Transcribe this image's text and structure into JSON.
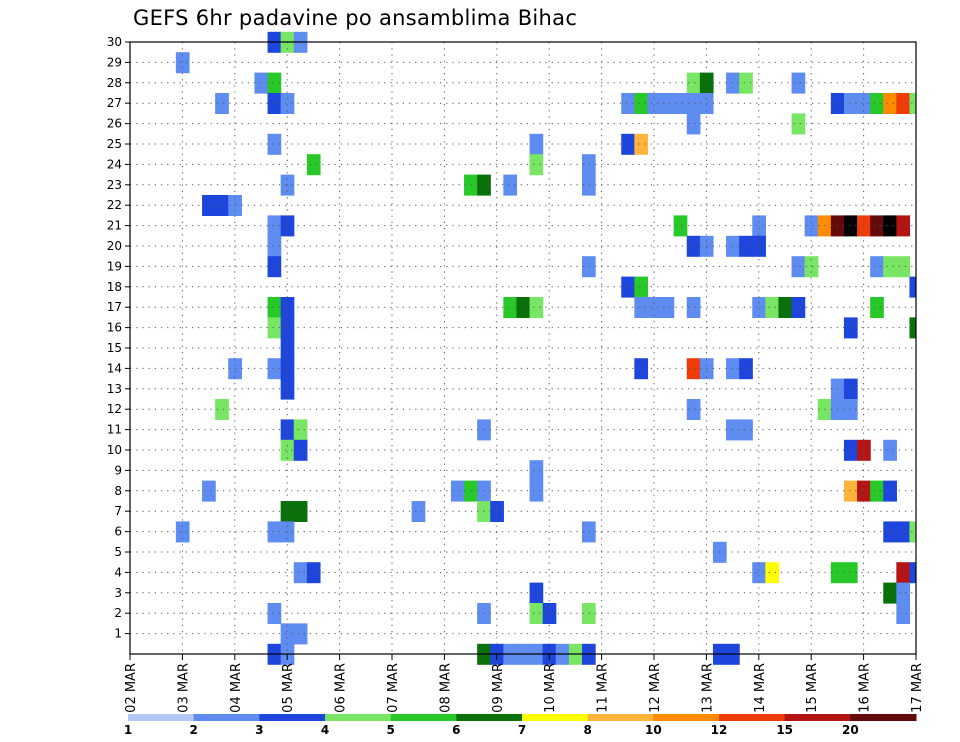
{
  "chart_data": {
    "type": "heatmap",
    "title": "GEFS 6hr padavine po ansamblima Bihac",
    "x_tick_labels": [
      "02 MAR",
      "03 MAR",
      "04 MAR",
      "05 MAR",
      "06 MAR",
      "07 MAR",
      "08 MAR",
      "09 MAR",
      "10 MAR",
      "11 MAR",
      "12 MAR",
      "13 MAR",
      "14 MAR",
      "15 MAR",
      "16 MAR",
      "17 MAR"
    ],
    "y_tick_labels": [
      "1",
      "2",
      "3",
      "4",
      "5",
      "6",
      "7",
      "8",
      "9",
      "10",
      "11",
      "12",
      "13",
      "14",
      "15",
      "16",
      "17",
      "18",
      "19",
      "20",
      "21",
      "22",
      "23",
      "24",
      "25",
      "26",
      "27",
      "28",
      "29",
      "30"
    ],
    "x_range": [
      0,
      60
    ],
    "y_range": [
      0,
      30
    ],
    "x_unit": "6-hour steps from 02 MAR",
    "grid": true,
    "legend_placement": "bottom",
    "legend_levels": [
      "1",
      "2",
      "3",
      "4",
      "5",
      "6",
      "7",
      "8",
      "10",
      "12",
      "15",
      "20"
    ],
    "legend_colors": [
      "#b4c8f5",
      "#5f8cf0",
      "#1e46dc",
      "#78e664",
      "#28c828",
      "#0a700a",
      "#ffff00",
      "#ffb43c",
      "#ff8c00",
      "#f03c0a",
      "#b41414",
      "#640a0a"
    ],
    "cells": [
      [
        11,
        30,
        2
      ],
      [
        12,
        30,
        3
      ],
      [
        13,
        30,
        1
      ],
      [
        4,
        29,
        1
      ],
      [
        10,
        28,
        1
      ],
      [
        11,
        28,
        4
      ],
      [
        43,
        28,
        3
      ],
      [
        44,
        28,
        5
      ],
      [
        46,
        28,
        1
      ],
      [
        47,
        28,
        3
      ],
      [
        51,
        28,
        1
      ],
      [
        7,
        27,
        1
      ],
      [
        11,
        27,
        2
      ],
      [
        12,
        27,
        1
      ],
      [
        38,
        27,
        1
      ],
      [
        39,
        27,
        4
      ],
      [
        40,
        27,
        1
      ],
      [
        41,
        27,
        1
      ],
      [
        42,
        27,
        1
      ],
      [
        43,
        27,
        1
      ],
      [
        44,
        27,
        1
      ],
      [
        54,
        27,
        2
      ],
      [
        55,
        27,
        1
      ],
      [
        56,
        27,
        1
      ],
      [
        57,
        27,
        4
      ],
      [
        58,
        27,
        8
      ],
      [
        59,
        27,
        9
      ],
      [
        60,
        27,
        3
      ],
      [
        43,
        26,
        1
      ],
      [
        51,
        26,
        3
      ],
      [
        11,
        25,
        1
      ],
      [
        31,
        25,
        1
      ],
      [
        38,
        25,
        2
      ],
      [
        39,
        25,
        7
      ],
      [
        14,
        24,
        4
      ],
      [
        31,
        24,
        3
      ],
      [
        35,
        24,
        1
      ],
      [
        12,
        23,
        1
      ],
      [
        26,
        23,
        4
      ],
      [
        27,
        23,
        5
      ],
      [
        29,
        23,
        1
      ],
      [
        35,
        23,
        1
      ],
      [
        6,
        22,
        2
      ],
      [
        7,
        22,
        2
      ],
      [
        8,
        22,
        1
      ],
      [
        11,
        21,
        1
      ],
      [
        12,
        21,
        2
      ],
      [
        42,
        21,
        4
      ],
      [
        48,
        21,
        1
      ],
      [
        52,
        21,
        1
      ],
      [
        53,
        21,
        8
      ],
      [
        54,
        21,
        11
      ],
      [
        55,
        21,
        12
      ],
      [
        56,
        21,
        9
      ],
      [
        57,
        21,
        11
      ],
      [
        58,
        21,
        12
      ],
      [
        59,
        21,
        10
      ],
      [
        11,
        20,
        1
      ],
      [
        43,
        20,
        2
      ],
      [
        44,
        20,
        1
      ],
      [
        46,
        20,
        1
      ],
      [
        47,
        20,
        2
      ],
      [
        48,
        20,
        2
      ],
      [
        11,
        19,
        2
      ],
      [
        35,
        19,
        1
      ],
      [
        51,
        19,
        1
      ],
      [
        52,
        19,
        3
      ],
      [
        57,
        19,
        1
      ],
      [
        58,
        19,
        3
      ],
      [
        59,
        19,
        3
      ],
      [
        38,
        18,
        2
      ],
      [
        39,
        18,
        4
      ],
      [
        60,
        18,
        2
      ],
      [
        11,
        17,
        4
      ],
      [
        12,
        17,
        2
      ],
      [
        29,
        17,
        4
      ],
      [
        30,
        17,
        5
      ],
      [
        31,
        17,
        3
      ],
      [
        39,
        17,
        1
      ],
      [
        40,
        17,
        1
      ],
      [
        41,
        17,
        1
      ],
      [
        43,
        17,
        1
      ],
      [
        48,
        17,
        1
      ],
      [
        49,
        17,
        3
      ],
      [
        50,
        17,
        5
      ],
      [
        51,
        17,
        2
      ],
      [
        57,
        17,
        4
      ],
      [
        11,
        16,
        3
      ],
      [
        12,
        16,
        2
      ],
      [
        60,
        16,
        5
      ],
      [
        55,
        16,
        2
      ],
      [
        12,
        15,
        2
      ],
      [
        8,
        14,
        1
      ],
      [
        11,
        14,
        1
      ],
      [
        12,
        14,
        2
      ],
      [
        39,
        14,
        2
      ],
      [
        43,
        14,
        9
      ],
      [
        44,
        14,
        1
      ],
      [
        46,
        14,
        1
      ],
      [
        47,
        14,
        2
      ],
      [
        12,
        13,
        2
      ],
      [
        54,
        13,
        1
      ],
      [
        55,
        13,
        2
      ],
      [
        7,
        12,
        3
      ],
      [
        43,
        12,
        1
      ],
      [
        53,
        12,
        3
      ],
      [
        54,
        12,
        1
      ],
      [
        55,
        12,
        1
      ],
      [
        12,
        11,
        2
      ],
      [
        13,
        11,
        3
      ],
      [
        27,
        11,
        1
      ],
      [
        46,
        11,
        1
      ],
      [
        47,
        11,
        1
      ],
      [
        12,
        10,
        3
      ],
      [
        13,
        10,
        2
      ],
      [
        55,
        10,
        2
      ],
      [
        56,
        10,
        10
      ],
      [
        58,
        10,
        1
      ],
      [
        31,
        9,
        1
      ],
      [
        6,
        8,
        1
      ],
      [
        25,
        8,
        1
      ],
      [
        26,
        8,
        4
      ],
      [
        27,
        8,
        1
      ],
      [
        31,
        8,
        1
      ],
      [
        55,
        8,
        7
      ],
      [
        56,
        8,
        10
      ],
      [
        57,
        8,
        4
      ],
      [
        58,
        8,
        2
      ],
      [
        12,
        7,
        5
      ],
      [
        13,
        7,
        5
      ],
      [
        22,
        7,
        1
      ],
      [
        27,
        7,
        3
      ],
      [
        28,
        7,
        2
      ],
      [
        4,
        6,
        1
      ],
      [
        11,
        6,
        1
      ],
      [
        12,
        6,
        1
      ],
      [
        35,
        6,
        1
      ],
      [
        58,
        6,
        2
      ],
      [
        59,
        6,
        2
      ],
      [
        60,
        6,
        3
      ],
      [
        45,
        5,
        1
      ],
      [
        13,
        4,
        1
      ],
      [
        14,
        4,
        2
      ],
      [
        48,
        4,
        1
      ],
      [
        49,
        4,
        6
      ],
      [
        54,
        4,
        4
      ],
      [
        55,
        4,
        4
      ],
      [
        59,
        4,
        10
      ],
      [
        60,
        4,
        2
      ],
      [
        31,
        3,
        2
      ],
      [
        58,
        3,
        5
      ],
      [
        59,
        3,
        1
      ],
      [
        11,
        2,
        1
      ],
      [
        27,
        2,
        1
      ],
      [
        31,
        2,
        3
      ],
      [
        32,
        2,
        2
      ],
      [
        35,
        2,
        3
      ],
      [
        59,
        2,
        1
      ],
      [
        12,
        1,
        1
      ],
      [
        13,
        1,
        1
      ],
      [
        11,
        0,
        2
      ],
      [
        12,
        0,
        1
      ],
      [
        27,
        0,
        5
      ],
      [
        28,
        0,
        2
      ],
      [
        29,
        0,
        1
      ],
      [
        30,
        0,
        1
      ],
      [
        31,
        0,
        1
      ],
      [
        32,
        0,
        2
      ],
      [
        33,
        0,
        1
      ],
      [
        34,
        0,
        3
      ],
      [
        35,
        0,
        2
      ],
      [
        45,
        0,
        2
      ],
      [
        46,
        0,
        2
      ]
    ]
  }
}
